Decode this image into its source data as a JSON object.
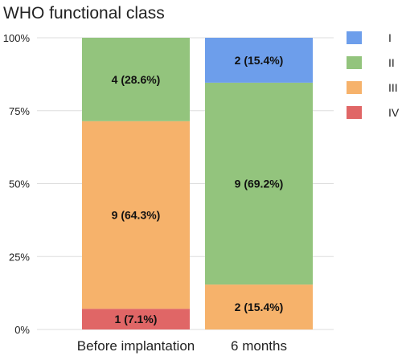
{
  "chart_data": {
    "type": "bar",
    "stacked": true,
    "title": "WHO functional class",
    "xlabel": "",
    "ylabel": "",
    "ylim": [
      0,
      100
    ],
    "yticks": [
      "0%",
      "25%",
      "50%",
      "75%",
      "100%"
    ],
    "ytick_values": [
      0,
      25,
      50,
      75,
      100
    ],
    "categories": [
      "Before implantation",
      "6 months"
    ],
    "legend_position": "top-right",
    "grid": true,
    "series": [
      {
        "name": "IV",
        "color": "#e06666",
        "values": [
          7.1,
          0
        ],
        "labels": [
          "1 (7.1%)",
          ""
        ]
      },
      {
        "name": "III",
        "color": "#f6b26b",
        "values": [
          64.3,
          15.4
        ],
        "labels": [
          "9 (64.3%)",
          "2 (15.4%)"
        ]
      },
      {
        "name": "II",
        "color": "#93c47d",
        "values": [
          28.6,
          69.2
        ],
        "labels": [
          "4 (28.6%)",
          "9 (69.2%)"
        ]
      },
      {
        "name": "I",
        "color": "#6d9eeb",
        "values": [
          0,
          15.4
        ],
        "labels": [
          "",
          "2 (15.4%)"
        ]
      }
    ],
    "legend_order": [
      "I",
      "II",
      "III",
      "IV"
    ]
  }
}
